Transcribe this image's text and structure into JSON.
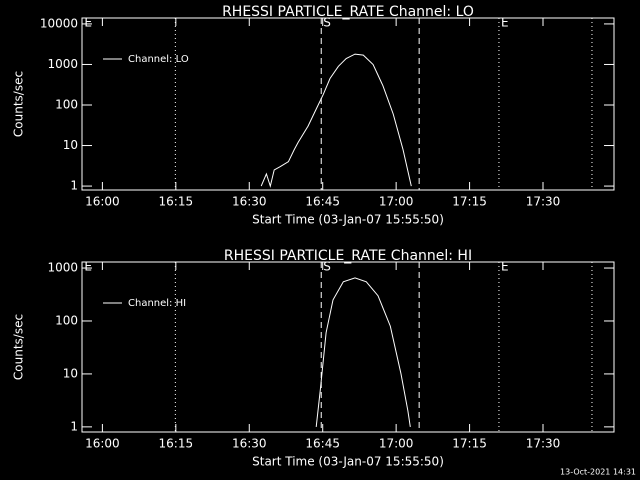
{
  "chart_data": [
    {
      "type": "line",
      "title": "RHESSI PARTICLE_RATE Channel: LO",
      "xlabel": "Start Time (03-Jan-07 15:55:50)",
      "ylabel": "Counts/sec",
      "xlim": [
        "15:55:50",
        "17:44:30"
      ],
      "xticks": [
        {
          "value": "16:00:00",
          "label": "16:00"
        },
        {
          "value": "16:15:00",
          "label": "16:15"
        },
        {
          "value": "16:30:00",
          "label": "16:30"
        },
        {
          "value": "16:45:00",
          "label": "16:45"
        },
        {
          "value": "17:00:00",
          "label": "17:00"
        },
        {
          "value": "17:15:00",
          "label": "17:15"
        },
        {
          "value": "17:30:00",
          "label": "17:30"
        }
      ],
      "yscale": "log",
      "ylim": [
        0.8,
        14000
      ],
      "yticks": [
        1,
        10,
        100,
        1000,
        10000
      ],
      "legend": "upper left",
      "markers": [
        {
          "x": "15:55:55",
          "style": "none",
          "label": "E"
        },
        {
          "x": "16:14:54",
          "style": "dotted"
        },
        {
          "x": "16:44:42",
          "style": "dashed",
          "label": "S"
        },
        {
          "x": "17:04:42",
          "style": "dashed"
        },
        {
          "x": "17:21:00",
          "style": "dotted",
          "label": "E"
        },
        {
          "x": "17:40:00",
          "style": "dotted"
        }
      ],
      "series": [
        {
          "name": "Channel: LO",
          "color": "#ffffff",
          "x": [
            "16:32:26",
            "16:33:30",
            "16:34:18",
            "16:35:06",
            "16:36:18",
            "16:38:00",
            "16:39:12",
            "16:40:00",
            "16:42:00",
            "16:43:42",
            "16:45:06",
            "16:46:30",
            "16:48:12",
            "16:49:48",
            "16:51:36",
            "16:53:18",
            "16:55:18",
            "16:57:18",
            "16:59:24",
            "17:01:24",
            "17:03:06"
          ],
          "values": [
            1,
            2,
            1,
            2.5,
            3,
            4,
            8,
            12,
            30,
            80,
            180,
            450,
            900,
            1400,
            1800,
            1700,
            1000,
            300,
            60,
            8,
            1
          ]
        }
      ]
    },
    {
      "type": "line",
      "title": "RHESSI PARTICLE_RATE Channel: HI",
      "xlabel": "Start Time (03-Jan-07 15:55:50)",
      "ylabel": "Counts/sec",
      "xlim": [
        "15:55:50",
        "17:44:30"
      ],
      "xticks": [
        {
          "value": "16:00:00",
          "label": "16:00"
        },
        {
          "value": "16:15:00",
          "label": "16:15"
        },
        {
          "value": "16:30:00",
          "label": "16:30"
        },
        {
          "value": "16:45:00",
          "label": "16:45"
        },
        {
          "value": "17:00:00",
          "label": "17:00"
        },
        {
          "value": "17:15:00",
          "label": "17:15"
        },
        {
          "value": "17:30:00",
          "label": "17:30"
        }
      ],
      "yscale": "log",
      "ylim": [
        0.8,
        1300
      ],
      "yticks": [
        1,
        10,
        100,
        1000
      ],
      "legend": "upper left",
      "markers": [
        {
          "x": "15:55:55",
          "style": "none",
          "label": "E"
        },
        {
          "x": "16:14:54",
          "style": "dotted"
        },
        {
          "x": "16:44:42",
          "style": "dashed",
          "label": "S"
        },
        {
          "x": "17:04:42",
          "style": "dashed"
        },
        {
          "x": "17:21:00",
          "style": "dotted",
          "label": "E"
        },
        {
          "x": "17:40:00",
          "style": "dotted"
        }
      ],
      "series": [
        {
          "name": "Channel: HI",
          "color": "#ffffff",
          "x": [
            "16:43:40",
            "16:44:30",
            "16:45:42",
            "16:47:06",
            "16:49:12",
            "16:51:36",
            "16:53:54",
            "16:56:18",
            "16:58:48",
            "17:01:00",
            "17:02:24",
            "17:02:54"
          ],
          "values": [
            1,
            5,
            60,
            250,
            550,
            650,
            550,
            300,
            80,
            10,
            2,
            1
          ]
        }
      ]
    }
  ],
  "footer": "13-Oct-2021 14:31"
}
